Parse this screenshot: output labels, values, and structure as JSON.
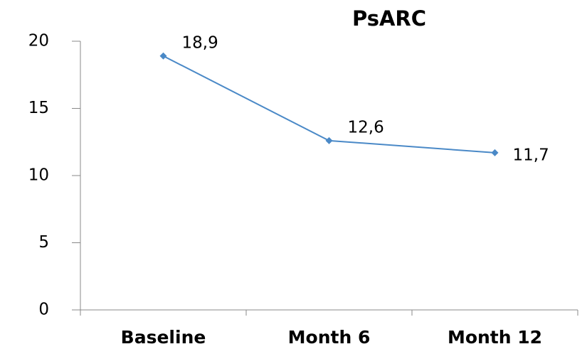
{
  "chart_data": {
    "type": "line",
    "title": "PsARC",
    "categories": [
      "Baseline",
      "Month 6",
      "Month 12"
    ],
    "series": [
      {
        "name": "PsARC",
        "color": "#4a89c7",
        "values": [
          18.9,
          12.6,
          11.7
        ],
        "value_labels": [
          "18,9",
          "12,6",
          "11,7"
        ]
      }
    ],
    "ylim": [
      0,
      20
    ],
    "yticks": [
      0,
      5,
      10,
      15,
      20
    ],
    "grid": false
  }
}
